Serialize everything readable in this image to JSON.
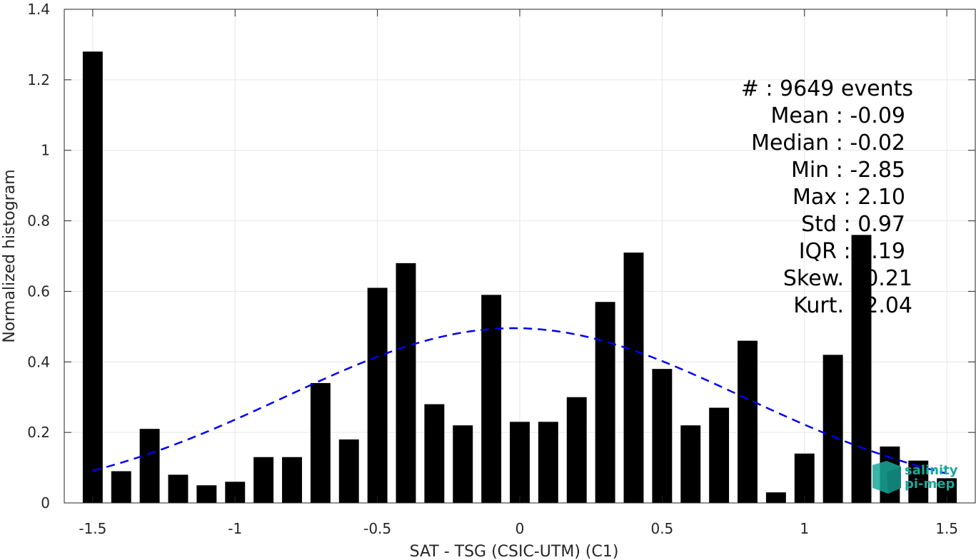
{
  "chart_data": {
    "type": "bar",
    "xlabel": "SAT - TSG (CSIC-UTM) (C1)",
    "ylabel": "Normalized histogram",
    "xlim": [
      -1.6,
      1.6
    ],
    "ylim": [
      0,
      1.4
    ],
    "x_ticks": [
      -1.5,
      -1,
      -0.5,
      0,
      0.5,
      1,
      1.5
    ],
    "x_tick_labels": [
      "-1.5",
      "-1",
      "-0.5",
      "0",
      "0.5",
      "1",
      "1.5"
    ],
    "y_ticks": [
      0,
      0.2,
      0.4,
      0.6,
      0.8,
      1,
      1.2,
      1.4
    ],
    "y_tick_labels": [
      "0",
      "0.2",
      "0.4",
      "0.6",
      "0.8",
      "1",
      "1.2",
      "1.4"
    ],
    "grid": true,
    "bar_color": "#000000",
    "bins": [
      -1.5,
      -1.4,
      -1.3,
      -1.2,
      -1.1,
      -1.0,
      -0.9,
      -0.8,
      -0.7,
      -0.6,
      -0.5,
      -0.4,
      -0.3,
      -0.2,
      -0.1,
      0.0,
      0.1,
      0.2,
      0.3,
      0.4,
      0.5,
      0.6,
      0.7,
      0.8,
      0.9,
      1.0,
      1.1,
      1.2,
      1.3,
      1.4,
      1.5
    ],
    "values": [
      1.28,
      0.09,
      0.21,
      0.08,
      0.05,
      0.06,
      0.13,
      0.13,
      0.34,
      0.18,
      0.61,
      0.68,
      0.28,
      0.22,
      0.59,
      0.23,
      0.23,
      0.3,
      0.57,
      0.71,
      0.38,
      0.22,
      0.27,
      0.46,
      0.03,
      0.14,
      0.42,
      0.76,
      0.16,
      0.12,
      0.07
    ],
    "fit_curve": {
      "type": "normal",
      "mean": -0.02,
      "std": 0.805,
      "color": "#0000ee",
      "style": "dashed",
      "x_range": [
        -1.5,
        1.5
      ]
    },
    "annotations": [
      "#  : 9649 events",
      "Mean : -0.09",
      "Median : -0.02",
      "Min : -2.85",
      "Max : 2.10",
      "Std : 0.97",
      "IQR : 1.19",
      "Skew. : 0.21",
      "Kurt. : 2.04"
    ]
  },
  "logo": {
    "line1": "salinity",
    "line2": "pi-mep",
    "color": "#1aa89a"
  }
}
